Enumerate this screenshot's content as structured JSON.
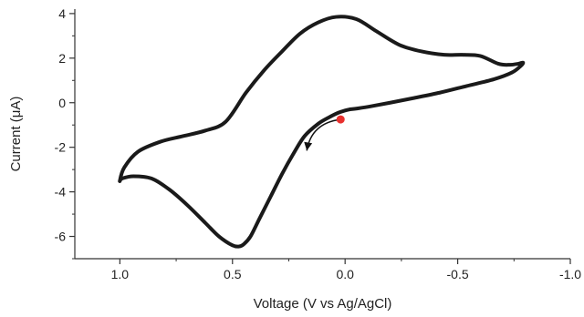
{
  "chart_data": {
    "type": "line",
    "title": "",
    "xlabel": "Voltage (V vs Ag/AgCl)",
    "ylabel": "Current (μA)",
    "xlim": [
      1.2,
      -1.0
    ],
    "ylim": [
      -7,
      4.2
    ],
    "x_reversed": true,
    "x_ticks": [
      1.0,
      0.5,
      0.0,
      -0.5,
      -1.0
    ],
    "x_tick_labels": [
      "1.0",
      "0.5",
      "0.0",
      "-0.5",
      "-1.0"
    ],
    "y_ticks": [
      4,
      2,
      0,
      -2,
      -4,
      -6
    ],
    "y_tick_labels": [
      "4",
      "2",
      "0",
      "-2",
      "-4",
      "-6"
    ],
    "grid": false,
    "legend": "none",
    "line_color": "#1a1a1a",
    "series": [
      {
        "x": [
          -0.02,
          -0.06,
          -0.12,
          -0.2,
          -0.3,
          -0.42,
          -0.54,
          -0.66,
          -0.74,
          -0.78,
          -0.79,
          -0.77,
          -0.73,
          -0.68,
          -0.6,
          -0.52,
          -0.44,
          -0.34,
          -0.24,
          -0.14,
          -0.05,
          0.04,
          0.12,
          0.2,
          0.28,
          0.36,
          0.44,
          0.53,
          0.62,
          0.72,
          0.82,
          0.92,
          0.98,
          1.0,
          0.99,
          0.94,
          0.86,
          0.78,
          0.7,
          0.62,
          0.56,
          0.5,
          0.47,
          0.45,
          0.42,
          0.38,
          0.33,
          0.28,
          0.23,
          0.18,
          0.12,
          0.07,
          0.03,
          0.0,
          -0.02
        ],
        "y": [
          -0.3,
          -0.25,
          -0.15,
          0.0,
          0.2,
          0.45,
          0.75,
          1.05,
          1.35,
          1.65,
          1.8,
          1.75,
          1.7,
          1.75,
          2.1,
          2.15,
          2.15,
          2.3,
          2.6,
          3.2,
          3.75,
          3.85,
          3.6,
          3.1,
          2.3,
          1.45,
          0.45,
          -0.85,
          -1.25,
          -1.5,
          -1.75,
          -2.2,
          -2.9,
          -3.5,
          -3.4,
          -3.3,
          -3.4,
          -3.9,
          -4.6,
          -5.4,
          -6.0,
          -6.4,
          -6.45,
          -6.35,
          -6.0,
          -5.2,
          -4.2,
          -3.2,
          -2.3,
          -1.5,
          -0.95,
          -0.65,
          -0.45,
          -0.35,
          -0.3
        ]
      }
    ],
    "start_marker": {
      "x": 0.02,
      "y": -0.75,
      "color": "#e8302e"
    },
    "direction_arrow": {
      "from": [
        0.02,
        -0.75
      ],
      "to": [
        0.17,
        -2.15
      ],
      "color": "#111111"
    }
  }
}
